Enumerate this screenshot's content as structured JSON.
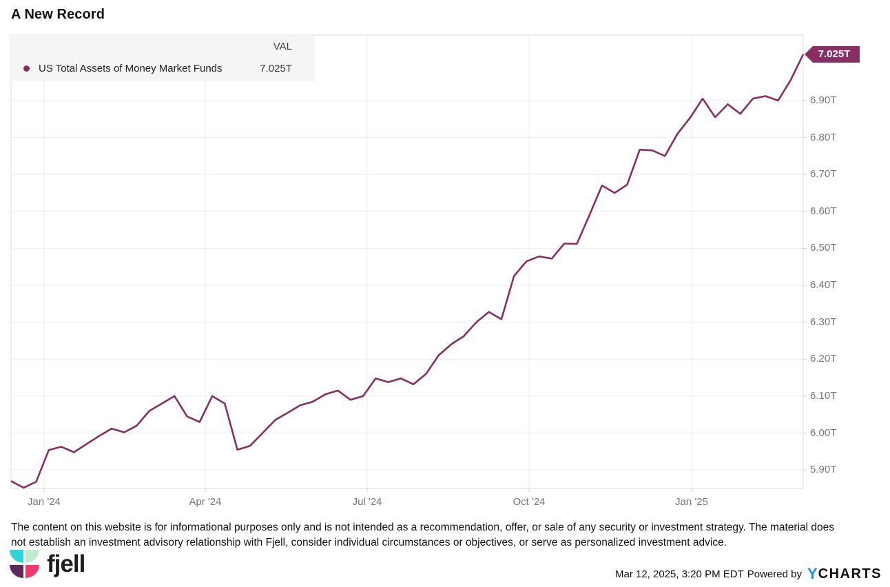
{
  "title": "A New Record",
  "colors": {
    "line": "#882E62",
    "badge_bg": "#882E62",
    "grid": "#ECECEC",
    "plot_border": "#DEDEDE",
    "tick": "#CCCCCC",
    "axis_text": "#76767A",
    "legend_bg": "#F5F5F5",
    "ycharts_blue": "#1E8DEE",
    "logo_cyan": "#2ED5D5",
    "logo_mint": "#BFEACD",
    "logo_plum": "#5D2A5F",
    "logo_pink": "#F0386B"
  },
  "legend": {
    "val_header": "VAL",
    "series_label": "US Total Assets of Money Market Funds",
    "series_value": "7.025T"
  },
  "badge": {
    "label": "7.025T"
  },
  "footer": {
    "disclaimer_line1": "The content on this website is for informational purposes only and is not intended as a recommendation, offer, or sale of any security or investment strategy. The material does",
    "disclaimer_line2": "not establish an investment advisory relationship with Fjell, consider individual circumstances or objectives, or serve as personalized investment advice.",
    "brand": "fjell",
    "timestamp": "Mar 12, 2025, 3:20 PM EDT",
    "powered_by": "Powered by",
    "ycharts_y": "Y",
    "ycharts_rest": "CHARTS"
  },
  "chart_data": {
    "type": "line",
    "title": "A New Record",
    "series_name": "US Total Assets of Money Market Funds",
    "latest_value_label": "7.025T",
    "unit": "trillions USD",
    "frequency": "weekly, Dec 2023 - Mar 12 2025",
    "grid": true,
    "legend_position": "top-left",
    "ylim": [
      5.85,
      7.077
    ],
    "y_tick_values": [
      6.9,
      6.8,
      6.7,
      6.6,
      6.5,
      6.4,
      6.3,
      6.2,
      6.1,
      6.0,
      5.9
    ],
    "y_tick_labels": [
      "6.90T",
      "6.80T",
      "6.70T",
      "6.60T",
      "6.50T",
      "6.40T",
      "6.30T",
      "6.20T",
      "6.10T",
      "6.00T",
      "5.90T"
    ],
    "x_tick_labels": [
      "Jan '24",
      "Apr '24",
      "Jul '24",
      "Oct '24",
      "Jan '25"
    ],
    "x_tick_positions": [
      0.0417,
      0.2452,
      0.4496,
      0.6539,
      0.8591
    ],
    "values": [
      5.87,
      5.852,
      5.868,
      5.954,
      5.963,
      5.948,
      5.97,
      5.992,
      6.012,
      6.002,
      6.02,
      6.06,
      6.08,
      6.1,
      6.045,
      6.03,
      6.1,
      6.08,
      5.955,
      5.965,
      6.0,
      6.035,
      6.055,
      6.075,
      6.085,
      6.105,
      6.115,
      6.09,
      6.1,
      6.148,
      6.138,
      6.148,
      6.132,
      6.16,
      6.21,
      6.24,
      6.262,
      6.3,
      6.328,
      6.308,
      6.425,
      6.465,
      6.478,
      6.472,
      6.513,
      6.512,
      6.59,
      6.67,
      6.65,
      6.672,
      6.767,
      6.765,
      6.75,
      6.81,
      6.853,
      6.905,
      6.855,
      6.89,
      6.864,
      6.905,
      6.912,
      6.9,
      6.955,
      7.025
    ]
  }
}
